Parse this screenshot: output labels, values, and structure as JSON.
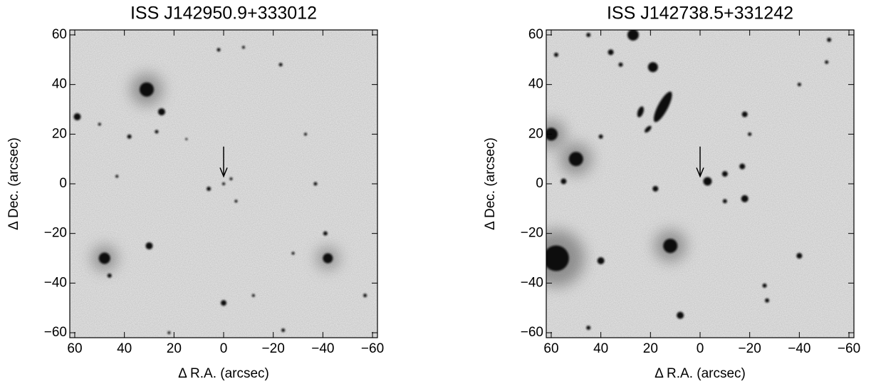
{
  "chart_data": [
    {
      "type": "image",
      "title": "ISS J142950.9+333012",
      "x_label": "Δ R.A. (arcsec)",
      "y_label": "Δ Dec. (arcsec)",
      "xlim": [
        62,
        -62
      ],
      "ylim": [
        -62,
        62
      ],
      "xticks": [
        60,
        40,
        20,
        0,
        {
          "value": -20,
          "label": "−20"
        },
        {
          "value": -40,
          "label": "−40"
        },
        {
          "value": -60,
          "label": "−60"
        }
      ],
      "yticks": [
        {
          "value": -60,
          "label": "−60"
        },
        {
          "value": -40,
          "label": "−40"
        },
        {
          "value": -20,
          "label": "−20"
        },
        0,
        20,
        40,
        60
      ]
    },
    {
      "type": "image",
      "title": "ISS J142738.5+331242",
      "x_label": "Δ R.A. (arcsec)",
      "y_label": "Δ Dec. (arcsec)",
      "xlim": [
        62,
        -62
      ],
      "ylim": [
        -62,
        62
      ],
      "xticks": [
        60,
        40,
        20,
        0,
        {
          "value": -20,
          "label": "−20"
        },
        {
          "value": -40,
          "label": "−40"
        },
        {
          "value": -60,
          "label": "−60"
        }
      ],
      "yticks": [
        {
          "value": -60,
          "label": "−60"
        },
        {
          "value": -40,
          "label": "−40"
        },
        {
          "value": -20,
          "label": "−20"
        },
        0,
        20,
        40,
        60
      ]
    }
  ]
}
